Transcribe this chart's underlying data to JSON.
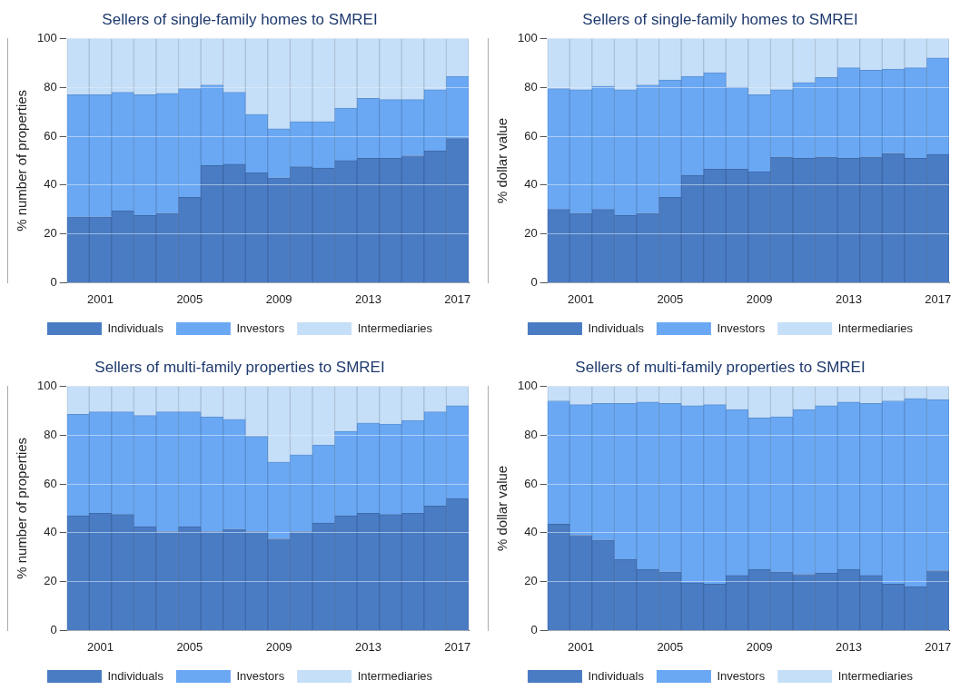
{
  "chart_data": [
    {
      "type": "bar",
      "title": "Sellers of single-family homes to SMREI",
      "ylabel": "% number of properties",
      "categories": [
        null,
        "2001",
        null,
        null,
        null,
        "2005",
        null,
        null,
        null,
        "2009",
        null,
        null,
        null,
        "2013",
        null,
        null,
        null,
        "2017"
      ],
      "stacked": true,
      "ylim": [
        0,
        100
      ],
      "yticks": [
        0,
        20,
        40,
        60,
        80,
        100
      ],
      "grid": "y",
      "legend": "bottom",
      "series": [
        {
          "name": "Individuals",
          "color": "#4a7cc4",
          "values": [
            27,
            27,
            29.5,
            27.5,
            28.5,
            35,
            48,
            48.5,
            45,
            43,
            47.5,
            47,
            50,
            51,
            51,
            52,
            54,
            59
          ]
        },
        {
          "name": "Investors",
          "color": "#6aa8f4",
          "values": [
            50,
            50,
            48.5,
            49.5,
            49,
            44.5,
            33,
            29.5,
            24,
            20,
            18.5,
            19,
            21.5,
            24.5,
            24,
            23,
            25,
            25.5
          ]
        },
        {
          "name": "Intermediaries",
          "color": "#c6dff9",
          "values": [
            23,
            23,
            22,
            23,
            22.5,
            20.5,
            19,
            22,
            31,
            37,
            34,
            34,
            28.5,
            24.5,
            25,
            25,
            21,
            15.5
          ]
        }
      ]
    },
    {
      "type": "bar",
      "title": "Sellers of single-family homes to SMREI",
      "ylabel": "% dollar value",
      "categories": [
        null,
        "2001",
        null,
        null,
        null,
        "2005",
        null,
        null,
        null,
        "2009",
        null,
        null,
        null,
        "2013",
        null,
        null,
        null,
        "2017"
      ],
      "stacked": true,
      "ylim": [
        0,
        100
      ],
      "yticks": [
        0,
        20,
        40,
        60,
        80,
        100
      ],
      "grid": "y",
      "legend": "bottom",
      "series": [
        {
          "name": "Individuals",
          "color": "#4a7cc4",
          "values": [
            30,
            28.5,
            30,
            27.5,
            28.5,
            35,
            44,
            46.5,
            46.5,
            45.5,
            51.5,
            51,
            51.5,
            51,
            51.5,
            53,
            51,
            52.5
          ]
        },
        {
          "name": "Investors",
          "color": "#6aa8f4",
          "values": [
            49.5,
            50.5,
            50.5,
            51.5,
            52.5,
            48,
            40.5,
            39.5,
            33.5,
            31.5,
            27.5,
            31,
            32.5,
            37,
            35.5,
            34.5,
            37,
            39.5
          ]
        },
        {
          "name": "Intermediaries",
          "color": "#c6dff9",
          "values": [
            20.5,
            21,
            19.5,
            21,
            19,
            17,
            15.5,
            14,
            20,
            23,
            21,
            18,
            16,
            12,
            13,
            12.5,
            12,
            8
          ]
        }
      ]
    },
    {
      "type": "bar",
      "title": "Sellers of multi-family properties to SMREI",
      "ylabel": "% number of properties",
      "categories": [
        null,
        "2001",
        null,
        null,
        null,
        "2005",
        null,
        null,
        null,
        "2009",
        null,
        null,
        null,
        "2013",
        null,
        null,
        null,
        "2017"
      ],
      "stacked": true,
      "ylim": [
        0,
        100
      ],
      "yticks": [
        0,
        20,
        40,
        60,
        80,
        100
      ],
      "grid": "y",
      "legend": "bottom",
      "series": [
        {
          "name": "Individuals",
          "color": "#4a7cc4",
          "values": [
            47,
            48,
            47.5,
            42.5,
            40.5,
            42.5,
            40.5,
            41.5,
            40.5,
            37.5,
            40.5,
            44,
            47,
            48,
            47.5,
            48,
            51,
            54
          ]
        },
        {
          "name": "Investors",
          "color": "#6aa8f4",
          "values": [
            41.5,
            41.5,
            42,
            45.5,
            49,
            47,
            47,
            45,
            39,
            31.5,
            31.5,
            32,
            34.5,
            37,
            37,
            38,
            38.5,
            38
          ]
        },
        {
          "name": "Intermediaries",
          "color": "#c6dff9",
          "values": [
            11.5,
            10.5,
            10.5,
            12,
            10.5,
            10.5,
            12.5,
            13.5,
            20.5,
            31,
            28,
            24,
            18.5,
            15,
            15.5,
            14,
            10.5,
            8
          ]
        }
      ]
    },
    {
      "type": "bar",
      "title": "Sellers of multi-family properties to SMREI",
      "ylabel": "% dollar value",
      "categories": [
        null,
        "2001",
        null,
        null,
        null,
        "2005",
        null,
        null,
        null,
        "2009",
        null,
        null,
        null,
        "2013",
        null,
        null,
        null,
        "2017"
      ],
      "stacked": true,
      "ylim": [
        0,
        100
      ],
      "yticks": [
        0,
        20,
        40,
        60,
        80,
        100
      ],
      "grid": "y",
      "legend": "bottom",
      "series": [
        {
          "name": "Individuals",
          "color": "#4a7cc4",
          "values": [
            43.5,
            39,
            37,
            29,
            25,
            24,
            19.5,
            19,
            22.5,
            25,
            24,
            23,
            23.5,
            25,
            22.5,
            19,
            18,
            24.5
          ]
        },
        {
          "name": "Investors",
          "color": "#6aa8f4",
          "values": [
            50.5,
            53.5,
            56,
            64,
            68.5,
            69,
            72.5,
            73.5,
            68,
            62,
            63.5,
            67.5,
            68.5,
            68.5,
            70.5,
            75,
            77,
            70
          ]
        },
        {
          "name": "Intermediaries",
          "color": "#c6dff9",
          "values": [
            6,
            7.5,
            7,
            7,
            6.5,
            7,
            8,
            7.5,
            9.5,
            13,
            12.5,
            9.5,
            8,
            6.5,
            7,
            6,
            5,
            5.5
          ]
        }
      ]
    }
  ]
}
